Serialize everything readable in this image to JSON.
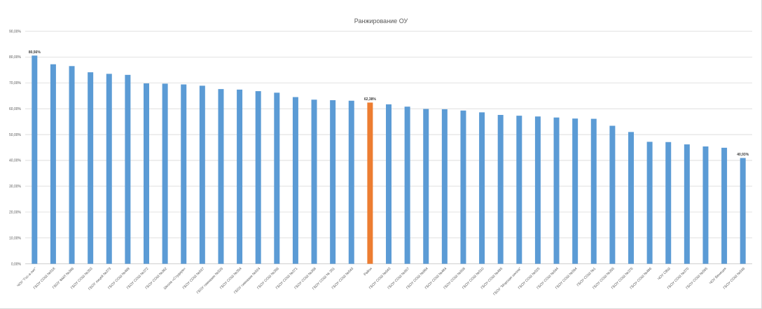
{
  "chart_data": {
    "type": "bar",
    "title": "Ранжирование ОУ",
    "xlabel": "",
    "ylabel": "",
    "ylim": [
      0,
      90
    ],
    "y_ticks": [
      "0,00%",
      "10,00%",
      "20,00%",
      "30,00%",
      "40,00%",
      "50,00%",
      "60,00%",
      "70,00%",
      "80,00%",
      "90,00%"
    ],
    "grid": true,
    "legend": "none",
    "bar_color": "#5b9bd5",
    "highlight_color": "#ed7d31",
    "highlight_category": "Район",
    "categories": [
      "ЧОУ \"Гос-а-лит\"",
      "ГБОУ СОШ №518",
      "ГБОУ ФМЛ №366",
      "ГБОУ СОШ №353",
      "ГБОУ лицей №373",
      "ГБОУ СОШ №489",
      "ГБОУ СОШ №372",
      "ГБОУ СОШ №362",
      "Школа «Студиум»",
      "ГБОУ СОШ №537",
      "ГБОУ гимназия №526",
      "ГБОУ СОШ №354",
      "ГБОУ гимназия №524",
      "ГБОУ СОШ №356",
      "ГБОУ СОШ №371",
      "ГБОУ СОШ №358",
      "ГБОУ СОШ № 351",
      "ГБОУ СОШ №543",
      "Район",
      "ГБОУ СОШ №643",
      "ГБОУ СОШ №507",
      "ГБОУ СОШ №684",
      "ГБОУ СОШ №484",
      "ГБОУ СОШ №508",
      "ГБОУ СОШ №510",
      "ГБОУ СОШ №495",
      "ГБОУ \"Морская школа\"",
      "ГБОУ СОШ №525",
      "ГБОУ СОШ №544",
      "ГБОУ СОШ №594",
      "ГБОУ СОШ №1",
      "ГБОУ СОШ №355",
      "ГБОУ СОШ №376",
      "ГБОУ СОШ №496",
      "ЧОУ СВШ",
      "ГБОУ СОШ №370",
      "ГБОУ СОШ №595",
      "ЧОУ Венеция",
      "ГБОУ СОШ №536"
    ],
    "values": [
      80.56,
      77.2,
      76.5,
      74.1,
      73.5,
      73.1,
      69.8,
      69.7,
      69.4,
      68.9,
      67.6,
      67.4,
      66.8,
      66.2,
      64.5,
      63.5,
      63.3,
      63.1,
      62.38,
      61.7,
      60.8,
      59.9,
      59.8,
      59.3,
      58.6,
      57.6,
      57.3,
      57.0,
      56.6,
      56.2,
      56.1,
      53.4,
      51.0,
      47.2,
      47.1,
      46.2,
      45.4,
      44.9,
      40.93
    ],
    "data_labels": [
      {
        "index": 0,
        "text": "80,56%"
      },
      {
        "index": 18,
        "text": "62,38%"
      },
      {
        "index": 38,
        "text": "40,93%"
      }
    ]
  }
}
